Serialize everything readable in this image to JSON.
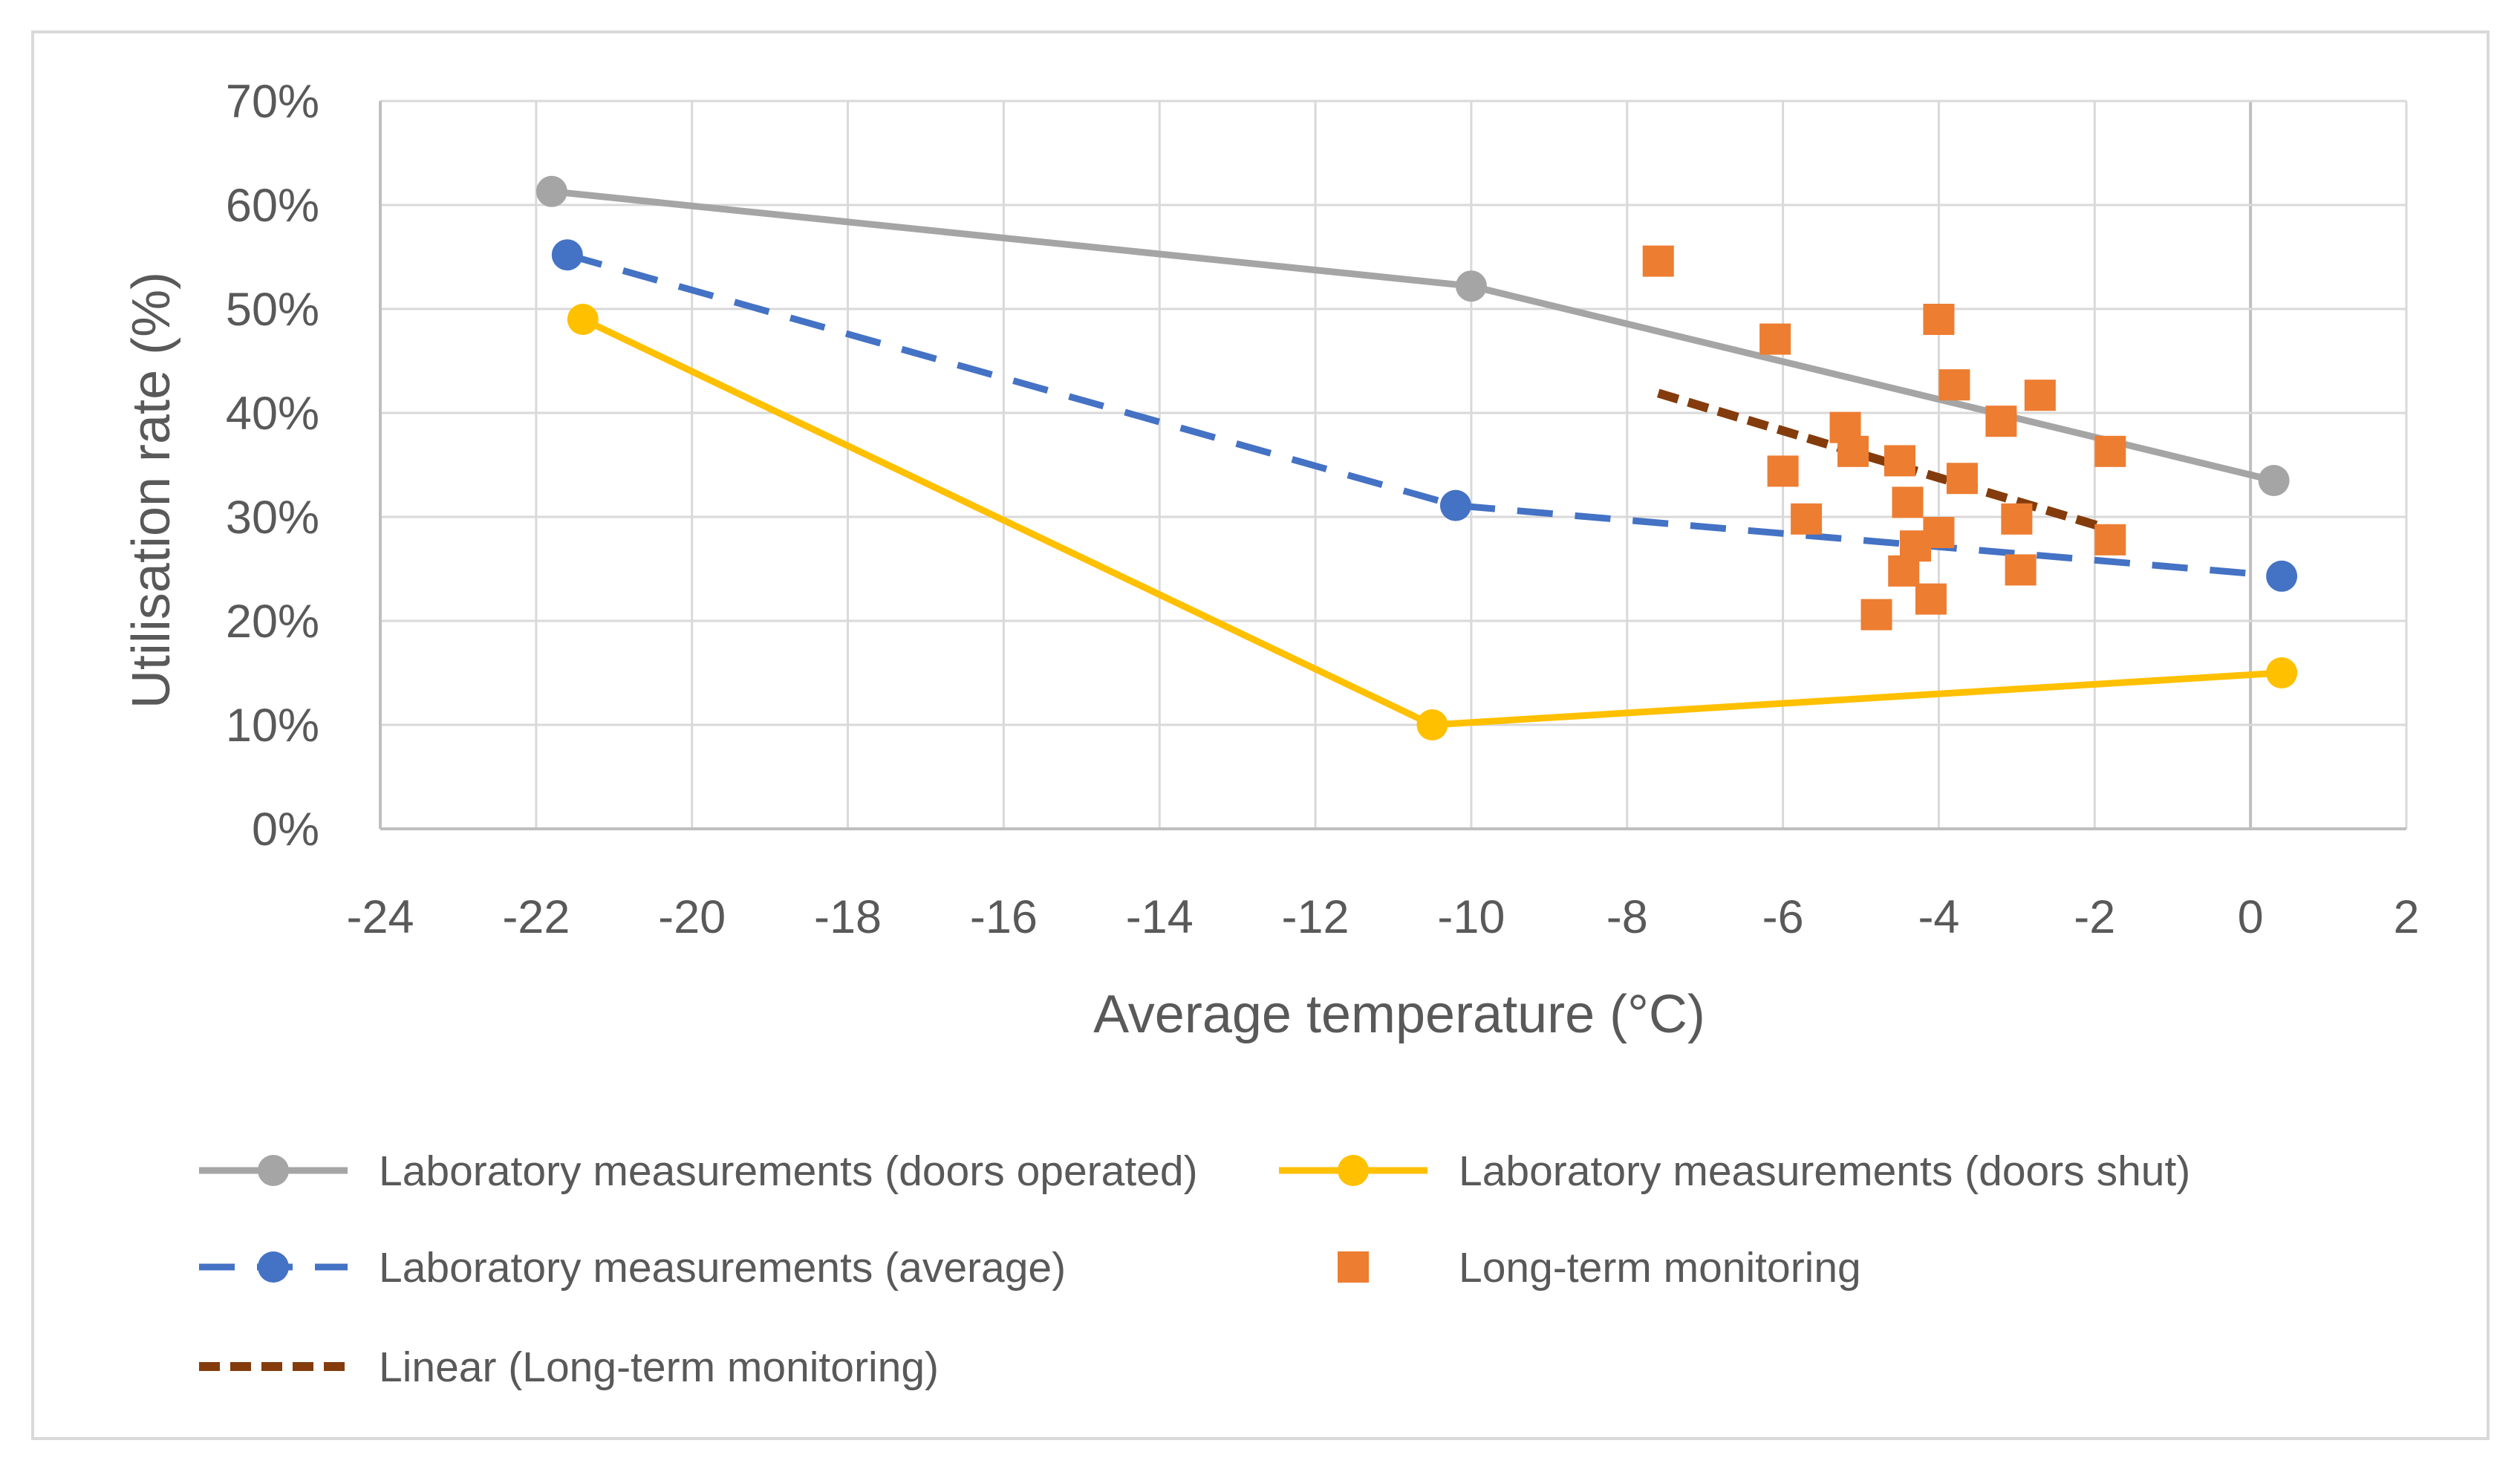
{
  "chart_data": {
    "type": "scatter",
    "title": "",
    "xlabel": "Average temperature (°C)",
    "ylabel": "Utilisation rate (%)",
    "xlim": [
      -24,
      2
    ],
    "ylim": [
      0,
      70
    ],
    "x_ticks": [
      "-24",
      "-22",
      "-20",
      "-18",
      "-16",
      "-14",
      "-12",
      "-10",
      "-8",
      "-6",
      "-4",
      "-2",
      "0",
      "2"
    ],
    "y_ticks": [
      "0%",
      "10%",
      "20%",
      "30%",
      "40%",
      "50%",
      "60%",
      "70%"
    ],
    "grid": true,
    "legend_position": "bottom",
    "series": [
      {
        "name": "Laboratory measurements (doors operated)",
        "kind": "line-marker",
        "color": "#A5A5A5",
        "dash": "solid",
        "points": [
          [
            -21.8,
            61.3
          ],
          [
            -10.0,
            52.2
          ],
          [
            0.3,
            33.5
          ]
        ]
      },
      {
        "name": "Laboratory measurements (doors shut)",
        "kind": "line-marker",
        "color": "#FFC000",
        "dash": "solid",
        "points": [
          [
            -21.4,
            49.0
          ],
          [
            -10.5,
            10.0
          ],
          [
            0.4,
            15.0
          ]
        ]
      },
      {
        "name": "Laboratory measurements (average)",
        "kind": "line-marker",
        "color": "#4472C4",
        "dash": "dashed",
        "points": [
          [
            -21.6,
            55.2
          ],
          [
            -10.2,
            31.1
          ],
          [
            0.4,
            24.3
          ]
        ]
      },
      {
        "name": "Long-term monitoring",
        "kind": "scatter-square",
        "color": "#ED7D31",
        "points": [
          [
            -7.6,
            54.6
          ],
          [
            -6.1,
            47.1
          ],
          [
            -6.0,
            34.4
          ],
          [
            -5.7,
            29.8
          ],
          [
            -5.2,
            38.6
          ],
          [
            -5.1,
            36.3
          ],
          [
            -4.5,
            35.4
          ],
          [
            -4.4,
            31.4
          ],
          [
            -4.45,
            24.8
          ],
          [
            -4.3,
            27.2
          ],
          [
            -4.0,
            28.5
          ],
          [
            -4.1,
            22.1
          ],
          [
            -4.8,
            20.6
          ],
          [
            -4.0,
            49.0
          ],
          [
            -3.8,
            42.7
          ],
          [
            -3.7,
            33.7
          ],
          [
            -3.2,
            39.2
          ],
          [
            -3.0,
            29.8
          ],
          [
            -2.95,
            24.9
          ],
          [
            -2.7,
            41.7
          ],
          [
            -1.8,
            36.3
          ],
          [
            -1.8,
            27.8
          ]
        ]
      },
      {
        "name": "Linear (Long-term monitoring)",
        "kind": "trendline",
        "color": "#843C0C",
        "dash": "dashed",
        "points": [
          [
            -7.6,
            41.9
          ],
          [
            -1.8,
            28.8
          ]
        ]
      }
    ]
  }
}
